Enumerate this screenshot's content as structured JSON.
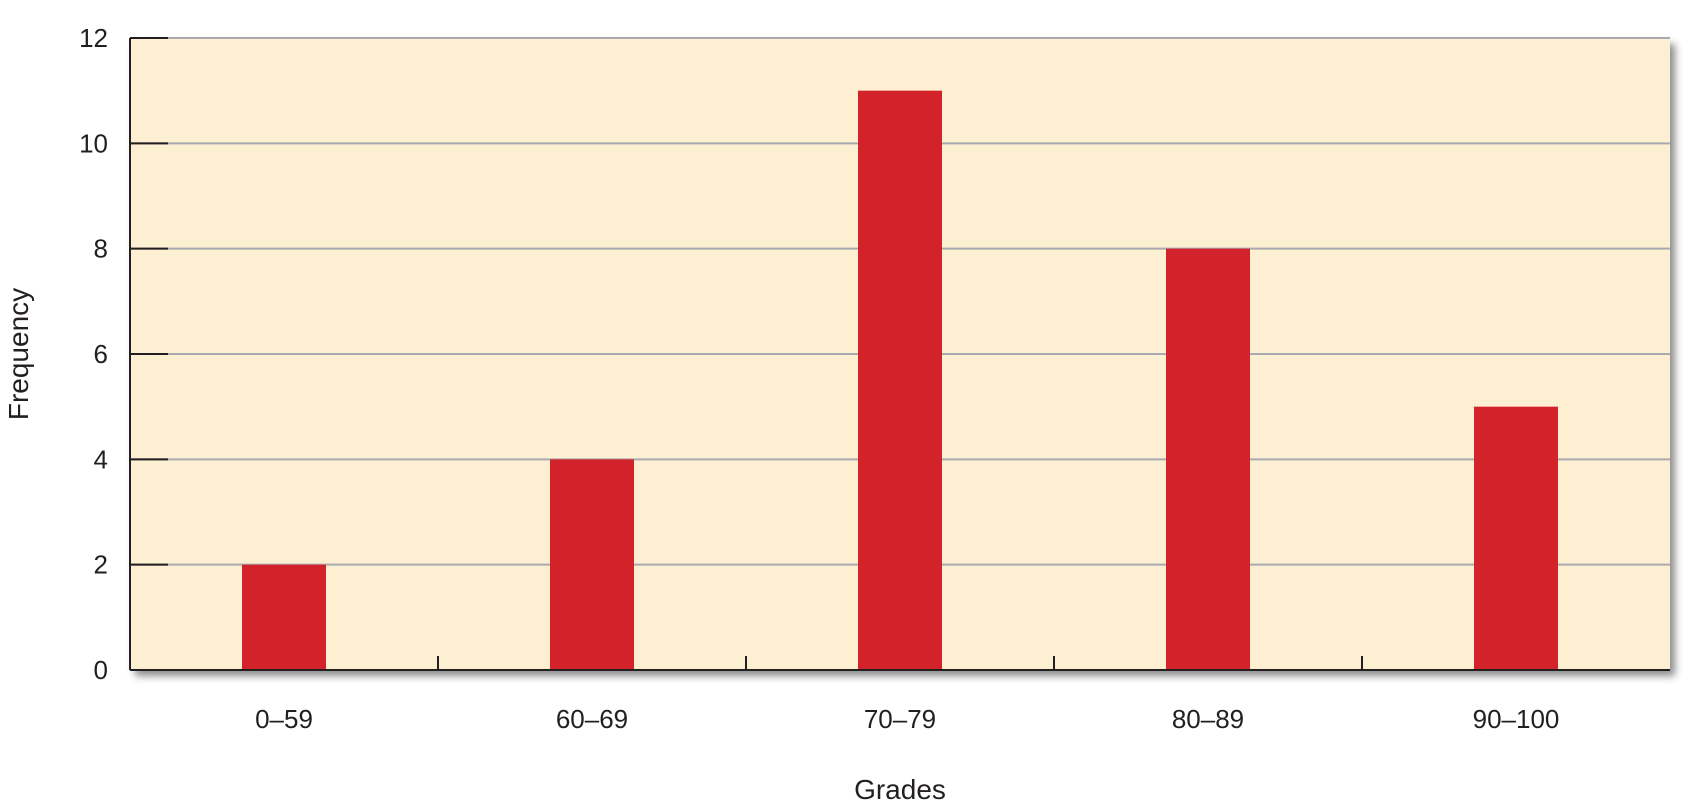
{
  "chart_data": {
    "type": "bar",
    "title": "",
    "xlabel": "Grades",
    "ylabel": "Frequency",
    "categories": [
      "0–59",
      "60–69",
      "70–79",
      "80–89",
      "90–100"
    ],
    "values": [
      2,
      4,
      11,
      8,
      5
    ],
    "ylim": [
      0,
      12
    ],
    "yticks": [
      0,
      2,
      4,
      6,
      8,
      10,
      12
    ],
    "grid": true,
    "legend": "none",
    "colors": {
      "bar": "#d2232a",
      "plot_background": "#fdefd2",
      "gridline": "#a9a9b0",
      "axis": "#231f20"
    }
  }
}
